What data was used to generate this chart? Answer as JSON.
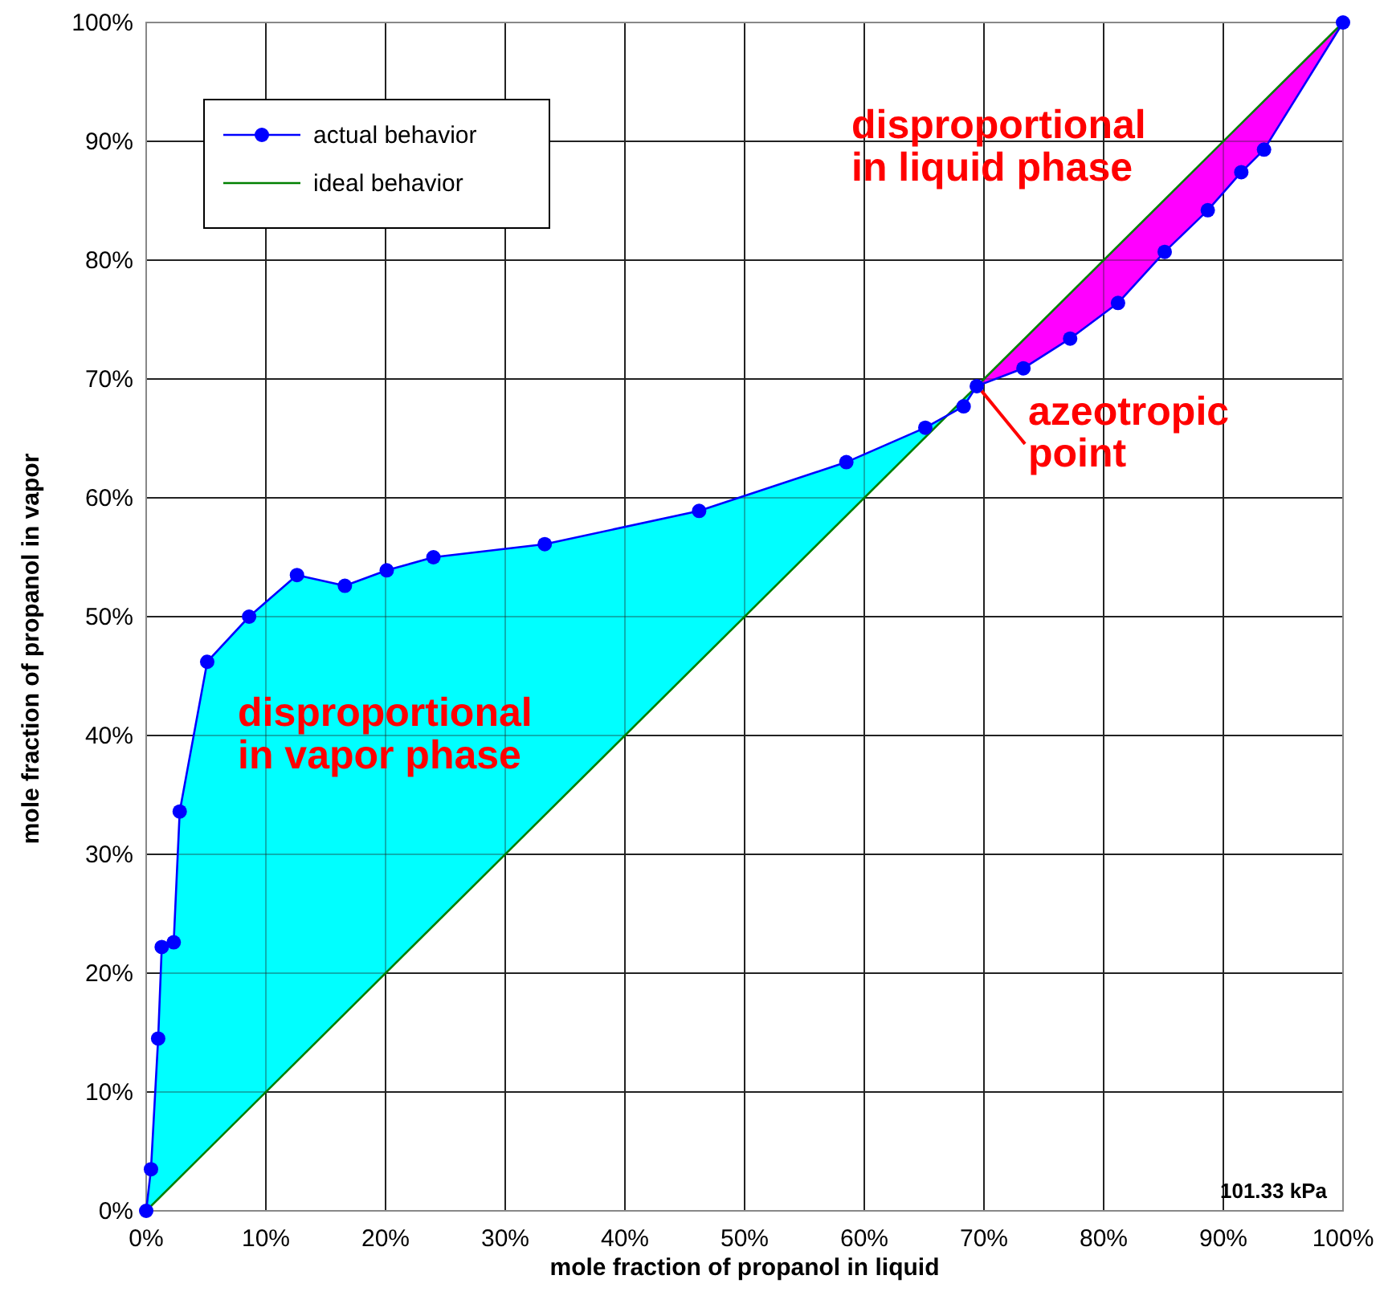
{
  "chart_data": {
    "type": "line",
    "xlabel": "mole fraction of propanol in liquid",
    "ylabel": "mole fraction of propanol in vapor",
    "xlim": [
      0,
      100
    ],
    "ylim": [
      0,
      100
    ],
    "xticks": [
      {
        "value": 0,
        "label": "0%"
      },
      {
        "value": 10,
        "label": "10%"
      },
      {
        "value": 20,
        "label": "20%"
      },
      {
        "value": 30,
        "label": "30%"
      },
      {
        "value": 40,
        "label": "40%"
      },
      {
        "value": 50,
        "label": "50%"
      },
      {
        "value": 60,
        "label": "60%"
      },
      {
        "value": 70,
        "label": "70%"
      },
      {
        "value": 80,
        "label": "80%"
      },
      {
        "value": 90,
        "label": "90%"
      },
      {
        "value": 100,
        "label": "100%"
      }
    ],
    "yticks": [
      {
        "value": 0,
        "label": "0%"
      },
      {
        "value": 10,
        "label": "10%"
      },
      {
        "value": 20,
        "label": "20%"
      },
      {
        "value": 30,
        "label": "30%"
      },
      {
        "value": 40,
        "label": "40%"
      },
      {
        "value": 50,
        "label": "50%"
      },
      {
        "value": 60,
        "label": "60%"
      },
      {
        "value": 70,
        "label": "70%"
      },
      {
        "value": 80,
        "label": "80%"
      },
      {
        "value": 90,
        "label": "90%"
      },
      {
        "value": 100,
        "label": "100%"
      }
    ],
    "grid": true,
    "legend": "top left",
    "series": [
      {
        "type": "area",
        "color": "#00ffff",
        "x": [
          0,
          0.4,
          1.0,
          1.3,
          2.3,
          2.8,
          5.1,
          8.6,
          12.6,
          16.6,
          20.1,
          24.0,
          33.3,
          46.2,
          58.5,
          65.1,
          68.3,
          69.4
        ],
        "values": [
          0,
          3.5,
          14.5,
          22.2,
          22.6,
          33.6,
          46.2,
          50.0,
          53.5,
          52.6,
          53.9,
          55.0,
          56.1,
          58.9,
          63.0,
          65.9,
          67.7,
          69.4
        ]
      },
      {
        "type": "area",
        "color": "#ff00ff",
        "x": [
          69.4,
          73.3,
          77.2,
          81.2,
          85.1,
          88.7,
          91.5,
          93.4,
          100
        ],
        "values": [
          69.4,
          70.9,
          73.4,
          76.4,
          80.7,
          84.2,
          87.4,
          89.3,
          100
        ]
      },
      {
        "name": "actual behavior",
        "color": "#0000ff",
        "marker": "circle",
        "x": [
          0,
          0.4,
          1.0,
          1.3,
          2.3,
          2.8,
          5.1,
          8.6,
          12.6,
          16.6,
          20.1,
          24.0,
          33.3,
          46.2,
          58.5,
          65.1,
          68.3,
          69.4,
          73.3,
          77.2,
          81.2,
          85.1,
          88.7,
          91.5,
          93.4,
          100
        ],
        "values": [
          0,
          3.5,
          14.5,
          22.2,
          22.6,
          33.6,
          46.2,
          50.0,
          53.5,
          52.6,
          53.9,
          55.0,
          56.1,
          58.9,
          63.0,
          65.9,
          67.7,
          69.4,
          70.9,
          73.4,
          76.4,
          80.7,
          84.2,
          87.4,
          89.3,
          100
        ]
      },
      {
        "name": "ideal behavior",
        "color": "#008000",
        "marker": "none",
        "x": [
          0,
          100
        ],
        "values": [
          0,
          100
        ]
      }
    ],
    "annotations": [
      {
        "text": "azeotropic\npoint",
        "x": 69.4,
        "y": 69.4
      },
      "disproportional\nin vapor phase",
      "disproportional\nin liquid phase",
      "101.33 kPa"
    ]
  }
}
